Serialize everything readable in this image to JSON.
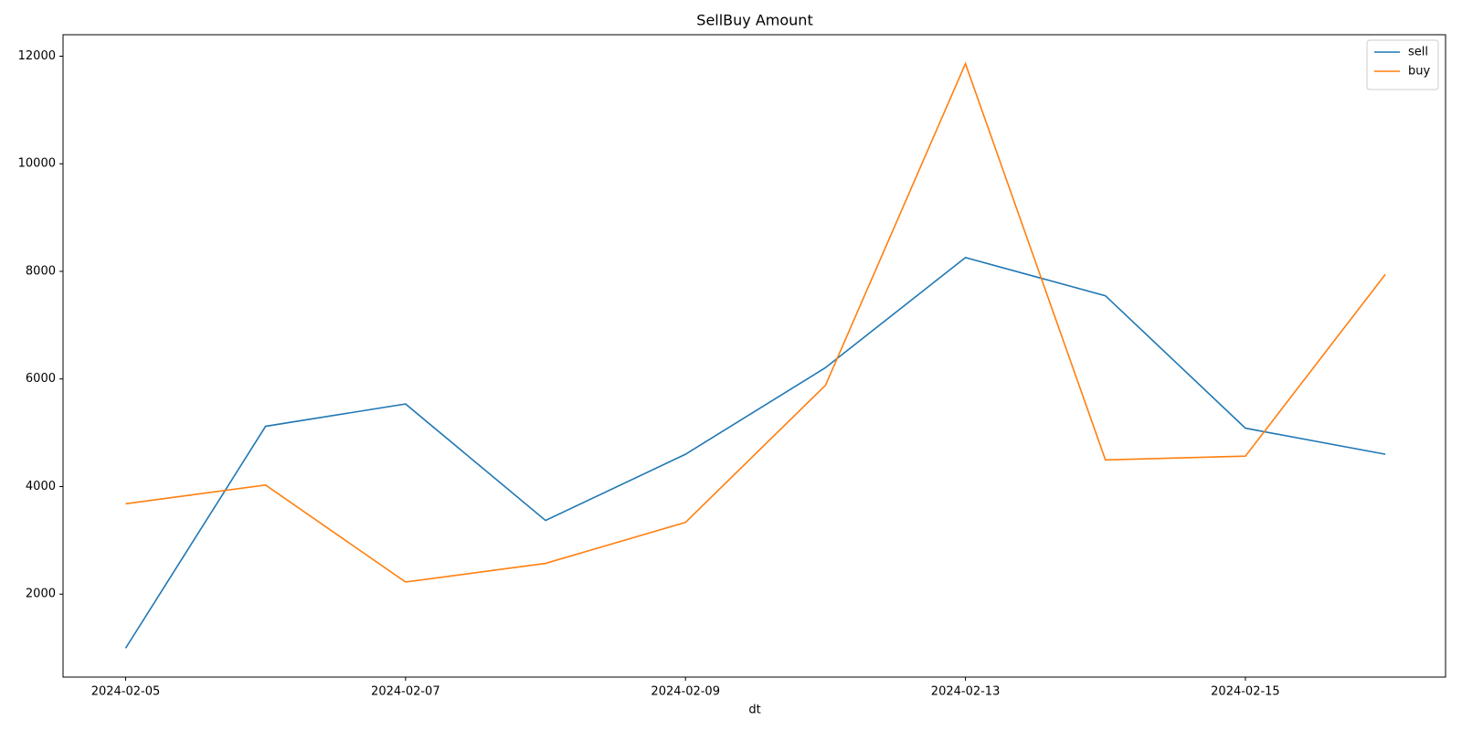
{
  "chart_data": {
    "type": "line",
    "title": "SellBuy Amount",
    "x_label": "dt",
    "categories": [
      "2024-02-05",
      null,
      "2024-02-07",
      null,
      "2024-02-09",
      null,
      "2024-02-13",
      null,
      "2024-02-15",
      null
    ],
    "series": [
      {
        "name": "sell",
        "color": "#1f77b4",
        "values": [
          995,
          5120,
          5535,
          3370,
          4600,
          6210,
          8257,
          7546,
          5085,
          4600
        ]
      },
      {
        "name": "buy",
        "color": "#ff7f0e",
        "values": [
          3680,
          4028,
          2225,
          2572,
          3334,
          5882,
          11861,
          4496,
          4565,
          7945
        ]
      }
    ],
    "xlim": [
      -0.447,
      9.43
    ],
    "ylim": [
      458,
      12399
    ],
    "yticks": [
      2000,
      4000,
      6000,
      8000,
      10000,
      12000
    ],
    "grid": false,
    "legend": "upper right"
  }
}
